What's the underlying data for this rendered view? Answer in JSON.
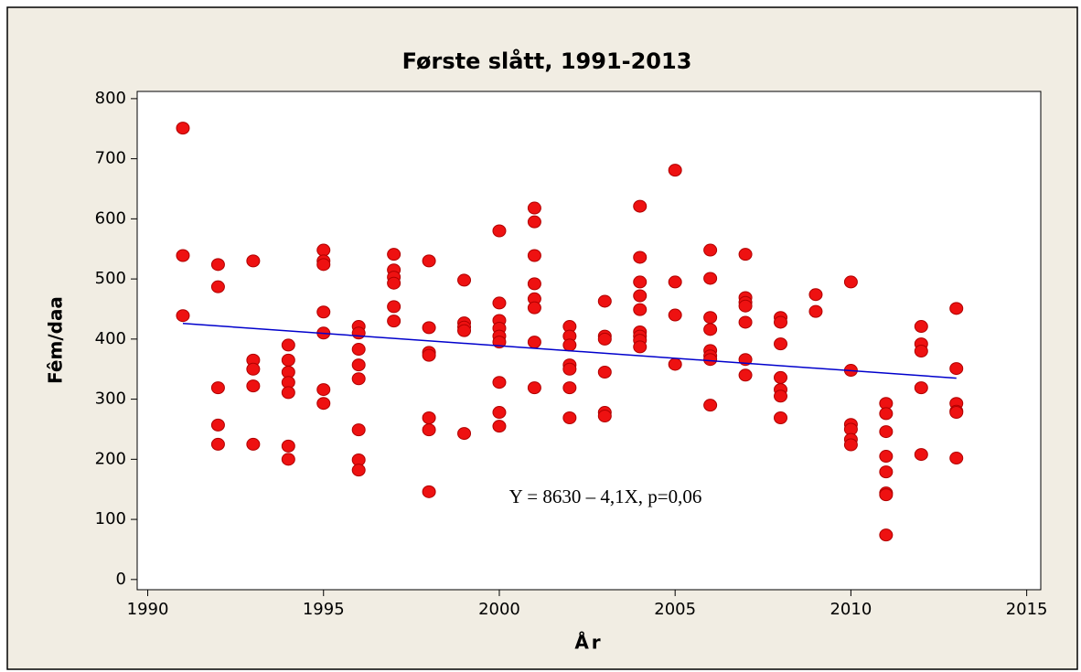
{
  "chart_data": {
    "type": "scatter",
    "title": "Første slått, 1991-2013",
    "x_label": "År",
    "y_label": "Fêm/daa",
    "annotation": "Y = 8630 – 4,1X, p=0,06",
    "xlim": [
      1989.7,
      2015.4
    ],
    "ylim": [
      -17,
      812
    ],
    "xticks": [
      1990,
      1995,
      2000,
      2005,
      2010,
      2015
    ],
    "yticks": [
      0,
      100,
      200,
      300,
      400,
      500,
      600,
      700,
      800
    ],
    "series": [
      {
        "color": "#ee1111",
        "x": [
          1991,
          1991,
          1991,
          1992,
          1992,
          1992,
          1992,
          1992,
          1993,
          1993,
          1993,
          1993,
          1993,
          1994,
          1994,
          1994,
          1994,
          1994,
          1994,
          1994,
          1995,
          1995,
          1995,
          1995,
          1995,
          1995,
          1995,
          1996,
          1996,
          1996,
          1996,
          1996,
          1996,
          1996,
          1996,
          1997,
          1997,
          1997,
          1997,
          1997,
          1997,
          1998,
          1998,
          1998,
          1998,
          1998,
          1998,
          1998,
          1999,
          1999,
          1999,
          1999,
          1999,
          2000,
          2000,
          2000,
          2000,
          2000,
          2000,
          2000,
          2000,
          2000,
          2001,
          2001,
          2001,
          2001,
          2001,
          2001,
          2001,
          2001,
          2002,
          2002,
          2002,
          2002,
          2002,
          2002,
          2002,
          2003,
          2003,
          2003,
          2003,
          2003,
          2003,
          2004,
          2004,
          2004,
          2004,
          2004,
          2004,
          2004,
          2004,
          2004,
          2005,
          2005,
          2005,
          2005,
          2006,
          2006,
          2006,
          2006,
          2006,
          2006,
          2006,
          2006,
          2007,
          2007,
          2007,
          2007,
          2007,
          2007,
          2007,
          2008,
          2008,
          2008,
          2008,
          2008,
          2008,
          2008,
          2009,
          2009,
          2010,
          2010,
          2010,
          2010,
          2010,
          2010,
          2011,
          2011,
          2011,
          2011,
          2011,
          2011,
          2011,
          2011,
          2012,
          2012,
          2012,
          2012,
          2012,
          2013,
          2013,
          2013,
          2013,
          2013,
          2013
        ],
        "values": [
          751,
          539,
          439,
          524,
          487,
          319,
          257,
          225,
          530,
          365,
          350,
          322,
          225,
          390,
          365,
          345,
          328,
          311,
          222,
          200,
          548,
          530,
          524,
          445,
          410,
          316,
          293,
          421,
          410,
          383,
          357,
          334,
          249,
          199,
          182,
          541,
          515,
          503,
          493,
          454,
          430,
          530,
          419,
          378,
          373,
          269,
          249,
          146,
          498,
          427,
          420,
          414,
          243,
          580,
          460,
          431,
          418,
          405,
          395,
          328,
          278,
          255,
          618,
          595,
          539,
          492,
          467,
          452,
          395,
          319,
          421,
          405,
          390,
          357,
          350,
          319,
          269,
          463,
          405,
          400,
          345,
          278,
          272,
          621,
          536,
          495,
          472,
          449,
          412,
          405,
          398,
          387,
          681,
          495,
          440,
          358,
          548,
          501,
          436,
          416,
          381,
          372,
          366,
          290,
          541,
          469,
          461,
          455,
          428,
          366,
          340,
          436,
          428,
          392,
          336,
          316,
          305,
          269,
          474,
          446,
          495,
          348,
          258,
          250,
          233,
          224,
          293,
          276,
          246,
          205,
          179,
          144,
          141,
          74,
          421,
          392,
          380,
          319,
          208,
          451,
          351,
          293,
          280,
          278,
          202
        ]
      },
      {
        "color": "#0000cc",
        "line": true,
        "x": [
          1991,
          2013
        ],
        "values": [
          426,
          335
        ]
      }
    ]
  }
}
